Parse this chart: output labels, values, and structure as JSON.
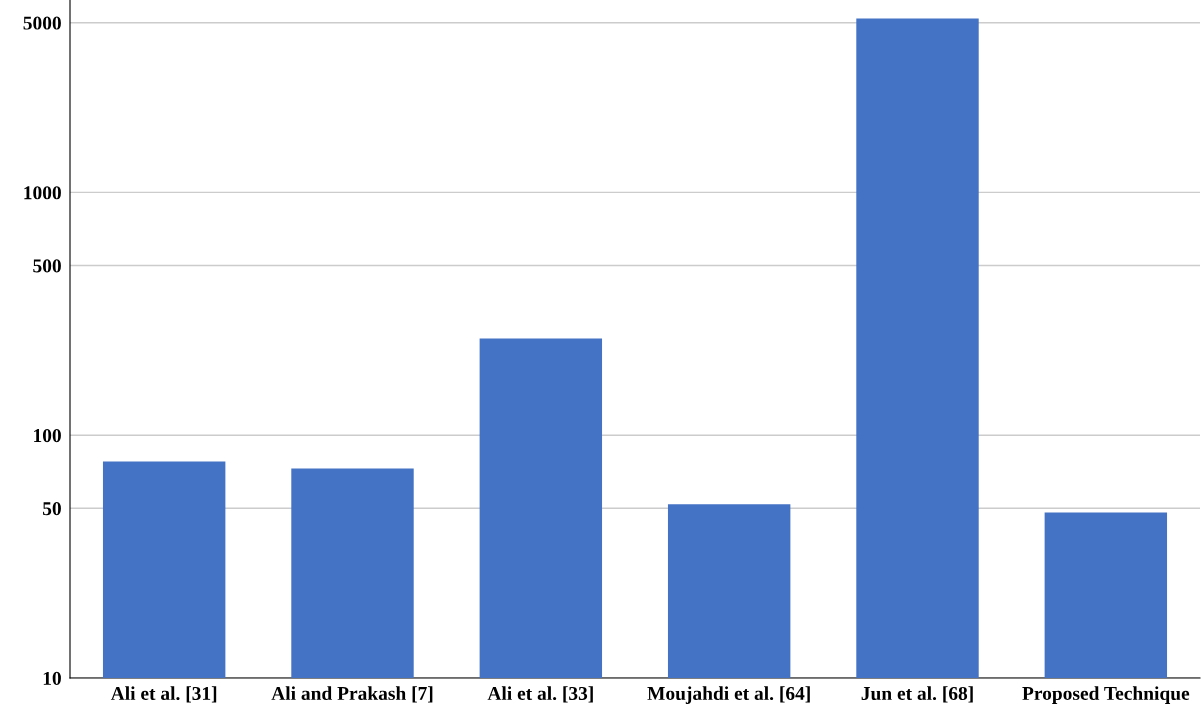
{
  "chart_data": {
    "type": "bar",
    "categories": [
      "Ali et al. [31]",
      "Ali and Prakash [7]",
      "Ali et al. [33]",
      "Moujahdi et al. [64]",
      "Jun et al. [68]",
      "Proposed Technique"
    ],
    "values": [
      78,
      73,
      250,
      52,
      5200,
      48
    ],
    "color": "#4472c4",
    "log": "y",
    "ylim": [
      10,
      6200
    ],
    "yticks": [
      10,
      50,
      100,
      500,
      1000,
      5000
    ],
    "grid": "y",
    "legend": false
  }
}
